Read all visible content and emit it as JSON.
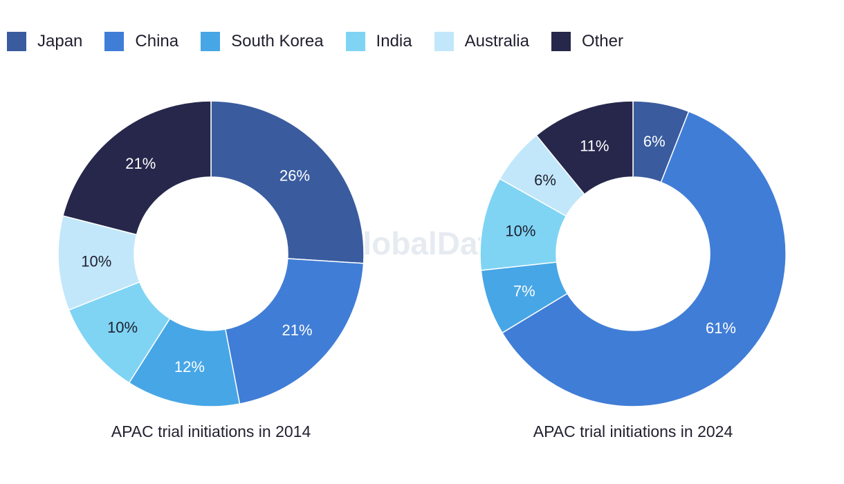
{
  "legend": [
    {
      "name": "Japan",
      "color": "#3a5c9e"
    },
    {
      "name": "China",
      "color": "#407dd6"
    },
    {
      "name": "South Korea",
      "color": "#47a6e6"
    },
    {
      "name": "India",
      "color": "#7fd4f4"
    },
    {
      "name": "Australia",
      "color": "#c2e7fa"
    },
    {
      "name": "Other",
      "color": "#26274b"
    }
  ],
  "watermark": "GlobalData",
  "chart_data": [
    {
      "type": "pie",
      "variant": "donut",
      "title": "APAC trial initiations in 2014",
      "categories": [
        "Japan",
        "China",
        "South Korea",
        "India",
        "Australia",
        "Other"
      ],
      "values": [
        26,
        21,
        12,
        10,
        10,
        21
      ],
      "labels": [
        "26%",
        "21%",
        "12%",
        "10%",
        "10%",
        "21%"
      ],
      "label_colors": [
        "#ffffff",
        "#ffffff",
        "#ffffff",
        "#1f1f2e",
        "#1f1f2e",
        "#ffffff"
      ]
    },
    {
      "type": "pie",
      "variant": "donut",
      "title": "APAC trial initiations in 2024",
      "categories": [
        "Japan",
        "China",
        "South Korea",
        "India",
        "Australia",
        "Other"
      ],
      "values": [
        6,
        61,
        7,
        10,
        6,
        11
      ],
      "labels": [
        "6%",
        "61%",
        "7%",
        "10%",
        "6%",
        "11%"
      ],
      "label_colors": [
        "#ffffff",
        "#ffffff",
        "#ffffff",
        "#1f1f2e",
        "#1f1f2e",
        "#ffffff"
      ]
    }
  ]
}
